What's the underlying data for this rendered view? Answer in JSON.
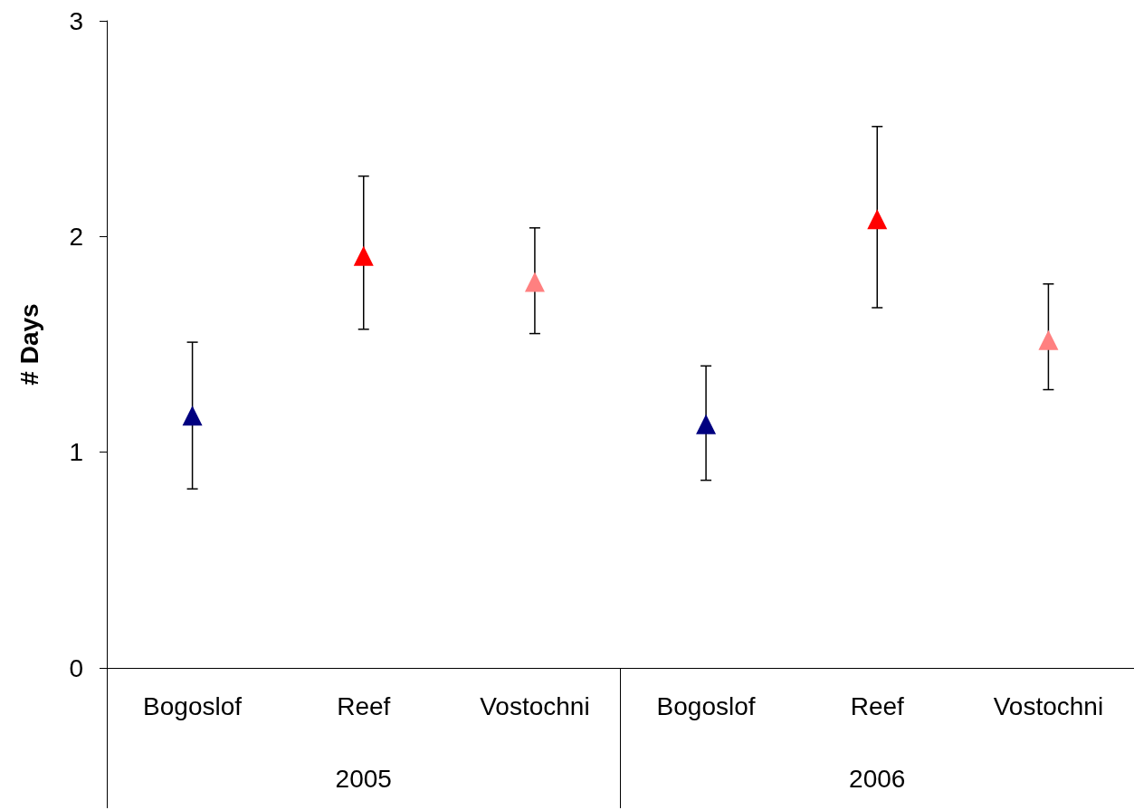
{
  "chart_data": {
    "type": "scatter",
    "ylabel": "# Days",
    "categories": [
      "Bogoslof",
      "Reef",
      "Vostochni",
      "Bogoslof",
      "Reef",
      "Vostochni"
    ],
    "values": [
      1.17,
      1.91,
      1.79,
      1.13,
      2.08,
      1.52
    ],
    "errors": [
      [
        0.83,
        1.51
      ],
      [
        1.57,
        2.28
      ],
      [
        1.55,
        2.04
      ],
      [
        0.87,
        1.4
      ],
      [
        1.67,
        2.51
      ],
      [
        1.29,
        1.78
      ]
    ],
    "colors": [
      "#000080",
      "#ff0000",
      "#ff8080",
      "#000080",
      "#ff0000",
      "#ff8080"
    ],
    "annotations": [
      "2005",
      "2006"
    ],
    "marker": "triangle",
    "ylim": [
      0,
      3
    ],
    "yticks": [
      0,
      1,
      2,
      3
    ],
    "grid": false
  }
}
